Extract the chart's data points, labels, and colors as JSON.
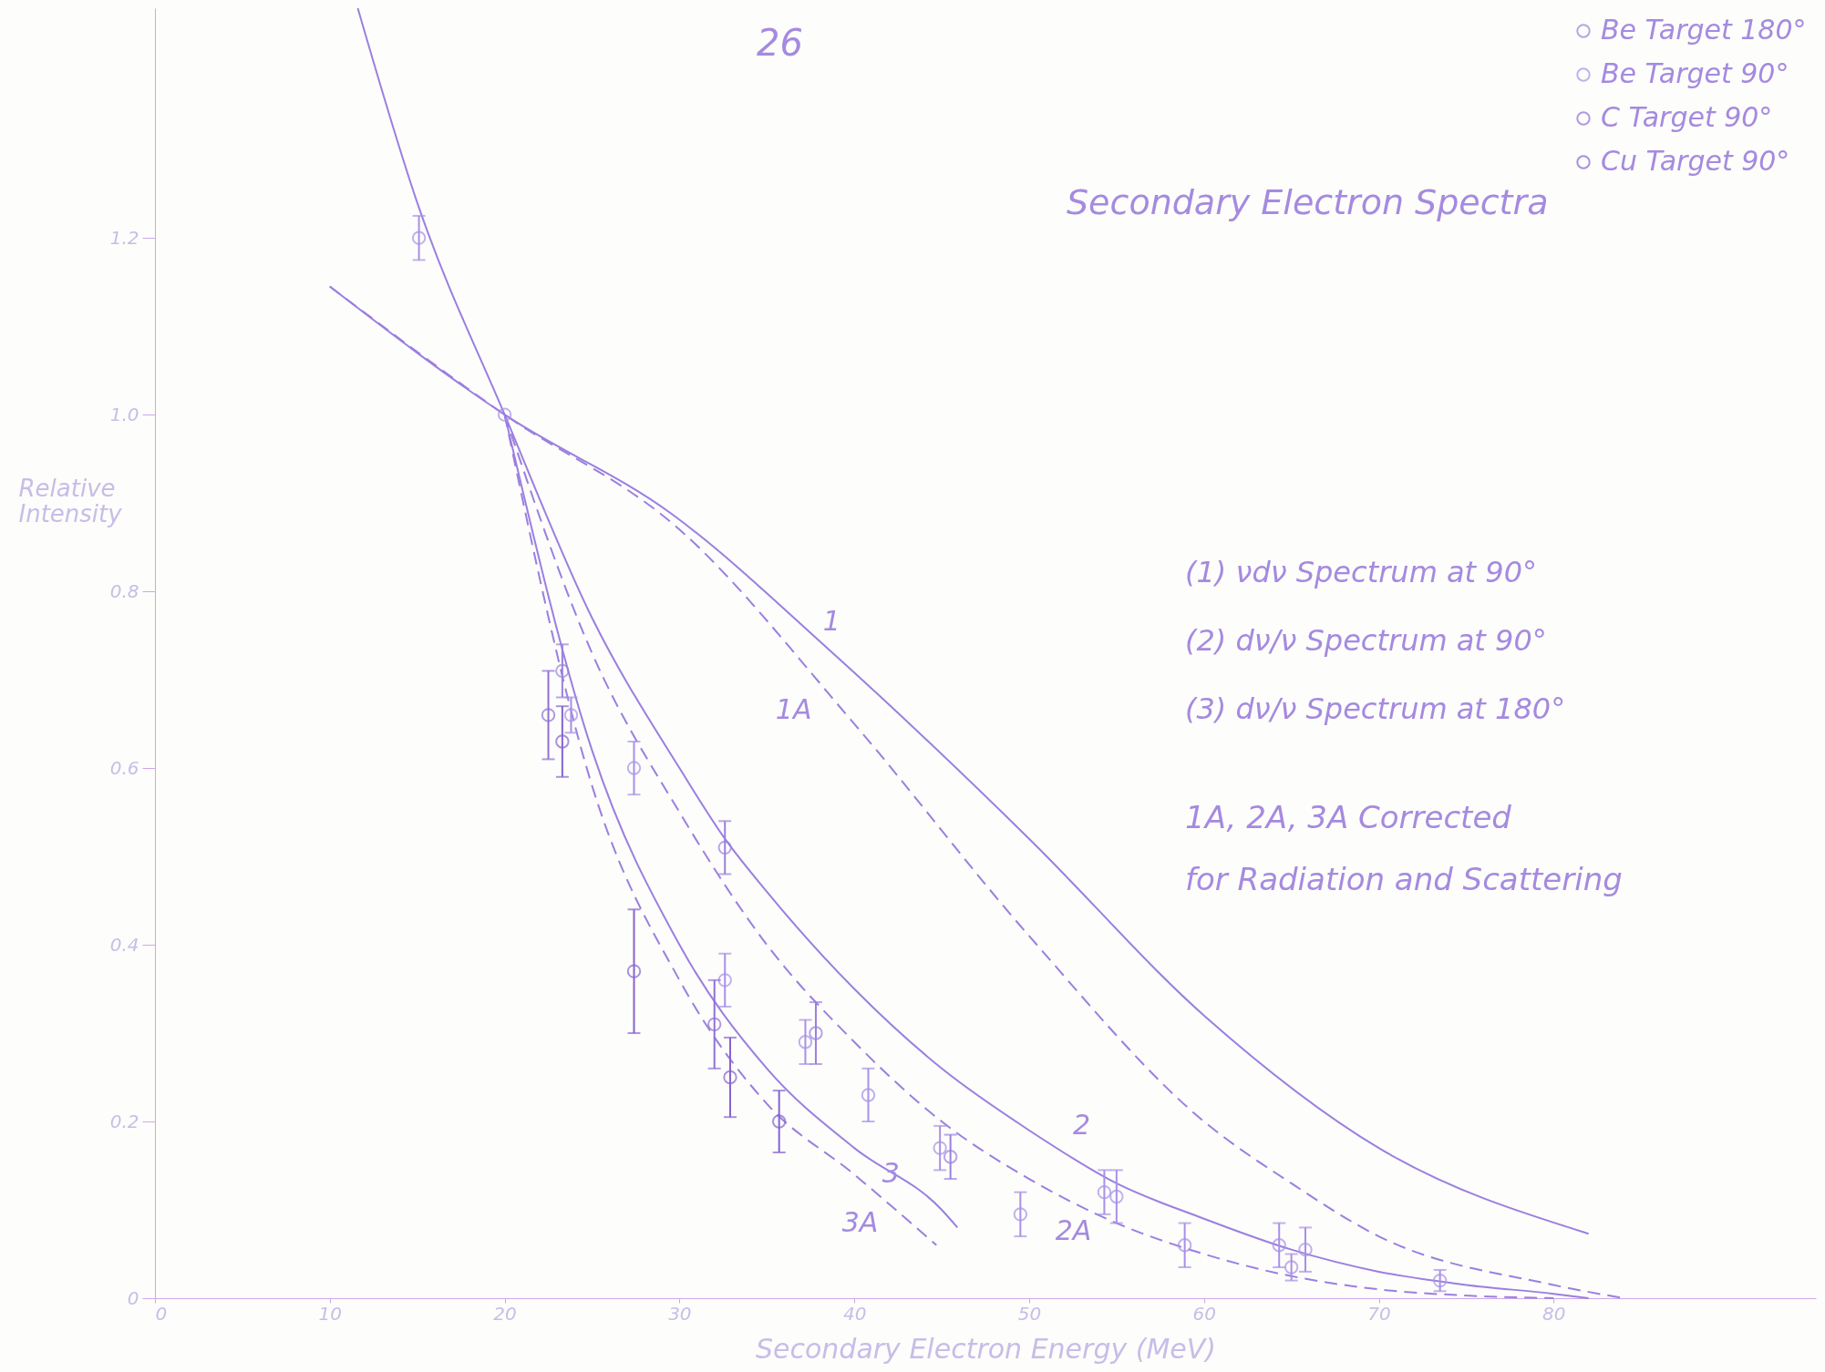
{
  "chart_data": {
    "type": "scatter",
    "title": "Secondary Electron Spectra",
    "xlabel": "Secondary Electron Energy (MeV)",
    "ylabel": "Relative Intensity",
    "xlim": [
      0,
      95
    ],
    "ylim": [
      0,
      1.46
    ],
    "xticks": [
      0,
      10,
      20,
      30,
      40,
      50,
      60,
      70,
      80
    ],
    "yticks": [
      0,
      0.2,
      0.4,
      0.6,
      0.8,
      {
        "value": 1,
        "label": "1.0"
      },
      1.2
    ],
    "grid": false,
    "legend": "top right",
    "marker": "circle",
    "annotations": [
      "26",
      "(1) νdν Spectrum at 90°",
      "(2) dν/ν Spectrum at 90°",
      "(3) dν/ν Spectrum at 180°",
      "1A, 2A, 3A Corrected for Radiation and Scattering",
      "1",
      "1A",
      "2",
      "2A",
      "3",
      "3A"
    ],
    "series": [
      {
        "name": "Be Target 180°",
        "color": "#9a80dc",
        "x": [
          23.3,
          32.6,
          37.8,
          45.5
        ],
        "values": [
          0.71,
          0.51,
          0.3,
          0.16
        ],
        "errors": [
          0.03,
          0.03,
          0.035,
          0.025
        ]
      },
      {
        "name": "Be Target 90°",
        "color": "#a890e8",
        "x": [
          15.1,
          20,
          23.8,
          27.4,
          32.6,
          37.2,
          40.8,
          44.9,
          49.5,
          54.3,
          55,
          58.9,
          64.3,
          65,
          65.8,
          73.5
        ],
        "values": [
          1.2,
          1.0,
          0.66,
          0.6,
          0.36,
          0.29,
          0.23,
          0.17,
          0.095,
          0.12,
          0.115,
          0.06,
          0.06,
          0.035,
          0.055,
          0.02
        ],
        "errors": [
          0.025,
          null,
          0.02,
          0.03,
          0.03,
          0.025,
          0.03,
          0.025,
          0.025,
          0.025,
          0.03,
          0.025,
          0.025,
          0.015,
          0.025,
          0.012
        ]
      },
      {
        "name": "C Target 90°",
        "color": "#9070d6",
        "x": [
          22.5,
          32
        ],
        "values": [
          0.66,
          0.31
        ],
        "errors": [
          0.05,
          0.05
        ]
      },
      {
        "name": "Cu Target 90°",
        "color": "#8664d0",
        "x": [
          23.3,
          27.4,
          32.9,
          35.7
        ],
        "values": [
          0.63,
          0.37,
          0.25,
          0.2
        ],
        "errors": [
          0.04,
          0.07,
          0.045,
          0.035
        ]
      },
      {
        "type": "line",
        "marker": "none",
        "color": "#9b7fe0",
        "line_style": "solid",
        "x": [
          10,
          20,
          29.6,
          38.5,
          50,
          60,
          70,
          82
        ],
        "values": [
          1.145,
          1.0,
          0.887,
          0.735,
          0.52,
          0.32,
          0.17,
          0.073
        ]
      },
      {
        "type": "line",
        "marker": "none",
        "color": "#9b7fe0",
        "line_style": "dashed",
        "x": [
          10,
          20,
          30,
          40,
          50,
          60,
          65,
          70,
          80,
          84
        ],
        "values": [
          1.145,
          1.0,
          0.87,
          0.65,
          0.41,
          0.2,
          0.13,
          0.07,
          0.015,
          0
        ]
      },
      {
        "type": "line",
        "marker": "none",
        "color": "#9b7fe0",
        "line_style": "solid",
        "x": [
          11.6,
          15,
          20,
          25,
          30,
          32.6,
          35,
          40,
          45,
          50,
          55,
          60,
          65,
          70,
          75,
          80,
          82
        ],
        "values": [
          1.46,
          1.24,
          1.0,
          0.77,
          0.6,
          0.52,
          0.46,
          0.35,
          0.26,
          0.19,
          0.13,
          0.09,
          0.055,
          0.03,
          0.015,
          0.005,
          0
        ]
      },
      {
        "type": "line",
        "marker": "none",
        "color": "#9b7fe0",
        "line_style": "dashed",
        "x": [
          20,
          25,
          30,
          35,
          40,
          45,
          50,
          55,
          60,
          65,
          70,
          75,
          80
        ],
        "values": [
          1.0,
          0.73,
          0.55,
          0.4,
          0.29,
          0.2,
          0.135,
          0.085,
          0.05,
          0.025,
          0.01,
          0.003,
          0
        ]
      },
      {
        "type": "line",
        "marker": "none",
        "color": "#9b7fe0",
        "line_style": "solid",
        "x": [
          20,
          25,
          30,
          35,
          40,
          45,
          45.9
        ],
        "values": [
          1.0,
          0.62,
          0.4,
          0.26,
          0.17,
          0.1,
          0.08
        ]
      },
      {
        "type": "line",
        "marker": "none",
        "color": "#9b7fe0",
        "line_style": "dashed",
        "x": [
          20,
          25,
          30,
          35,
          40,
          44.7
        ],
        "values": [
          1.0,
          0.58,
          0.36,
          0.22,
          0.14,
          0.06
        ]
      }
    ]
  }
}
